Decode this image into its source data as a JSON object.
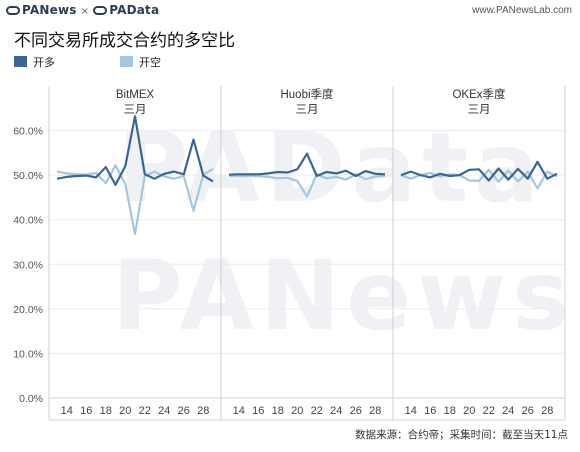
{
  "header": {
    "brand_left": "PANews",
    "brand_sep": "×",
    "brand_right": "PAData",
    "site": "www.PANewsLab.com"
  },
  "title": "不同交易所成交合约的多空比",
  "footer": "数据来源：合约帝；采集时间：截至当天11点",
  "watermark": [
    "PAData",
    "PANews"
  ],
  "colors": {
    "long": "#3d6594",
    "short": "#a5c6de",
    "grid": "#d0d0d0",
    "axis": "#bbbbbb"
  },
  "chart_data": {
    "type": "line",
    "legend": [
      {
        "name": "开多",
        "color": "#3d6594"
      },
      {
        "name": "开空",
        "color": "#a5c6de"
      }
    ],
    "ylim": [
      0,
      70
    ],
    "y_ticks": [
      "0.0%",
      "10.0%",
      "20.0%",
      "30.0%",
      "40.0%",
      "50.0%",
      "60.0%"
    ],
    "y_tick_values": [
      0,
      10,
      20,
      30,
      40,
      50,
      60
    ],
    "x_ticks": [
      14,
      16,
      18,
      20,
      22,
      24,
      26,
      28
    ],
    "panels": [
      {
        "title": "BitMEX",
        "subtitle": "三月",
        "x": [
          13,
          14,
          15,
          16,
          17,
          18,
          19,
          20,
          21,
          22,
          23,
          24,
          25,
          26,
          27,
          28,
          29
        ],
        "series": [
          {
            "name": "开多",
            "values": [
              49.2,
              49.6,
              49.8,
              49.9,
              49.5,
              51.8,
              47.8,
              52.0,
              63.2,
              50.2,
              49.2,
              50.3,
              50.8,
              50.2,
              58.0,
              49.9,
              48.6
            ]
          },
          {
            "name": "开空",
            "values": [
              50.8,
              50.4,
              50.2,
              50.1,
              50.5,
              48.2,
              52.2,
              48.0,
              36.8,
              49.8,
              50.8,
              49.7,
              49.2,
              49.8,
              42.0,
              50.1,
              51.4
            ]
          }
        ]
      },
      {
        "title": "Huobi季度",
        "subtitle": "三月",
        "x": [
          13,
          14,
          15,
          16,
          17,
          18,
          19,
          20,
          21,
          22,
          23,
          24,
          25,
          26,
          27,
          28,
          29
        ],
        "series": [
          {
            "name": "开多",
            "values": [
              50.1,
              50.2,
              50.2,
              50.2,
              50.4,
              50.7,
              50.6,
              51.3,
              54.8,
              49.8,
              50.7,
              50.4,
              51.0,
              49.8,
              50.9,
              50.3,
              50.2
            ]
          },
          {
            "name": "开空",
            "values": [
              49.9,
              49.8,
              49.8,
              49.8,
              49.6,
              49.3,
              49.4,
              48.7,
              45.2,
              50.2,
              49.3,
              49.6,
              49.0,
              50.2,
              49.1,
              49.7,
              49.8
            ]
          }
        ]
      },
      {
        "title": "OKEx季度",
        "subtitle": "三月",
        "x": [
          13,
          14,
          15,
          16,
          17,
          18,
          19,
          20,
          21,
          22,
          23,
          24,
          25,
          26,
          27,
          28,
          29
        ],
        "series": [
          {
            "name": "开多",
            "values": [
              50.0,
              50.8,
              50.0,
              49.5,
              50.3,
              49.8,
              50.0,
              51.2,
              51.3,
              48.8,
              51.5,
              49.0,
              51.4,
              49.2,
              53.0,
              49.2,
              50.3
            ]
          },
          {
            "name": "开空",
            "values": [
              50.0,
              49.2,
              50.0,
              50.5,
              49.7,
              50.2,
              50.0,
              48.8,
              48.7,
              51.2,
              48.5,
              51.0,
              48.6,
              50.8,
              47.0,
              50.8,
              49.7
            ]
          }
        ]
      }
    ]
  }
}
